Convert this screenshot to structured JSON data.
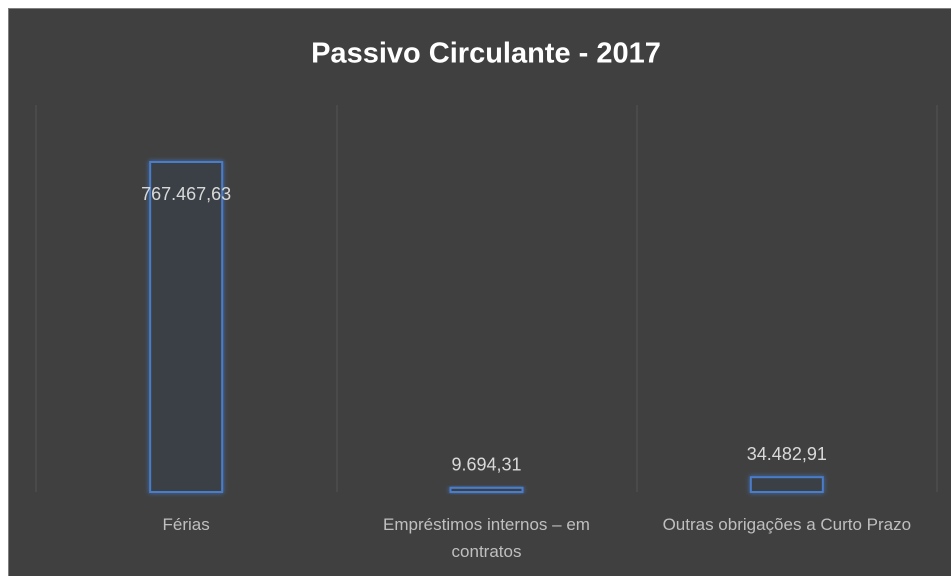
{
  "chart_data": {
    "type": "bar",
    "title": "Passivo Circulante - 2017",
    "categories": [
      "Férias",
      "Empréstimos internos – em contratos",
      "Outras obrigações a Curto Prazo"
    ],
    "values": [
      767467.63,
      9694.31,
      34482.91
    ],
    "value_labels": [
      "767.467,63",
      "9.694,31",
      "34.482,91"
    ],
    "color": "#4a7cc9"
  }
}
